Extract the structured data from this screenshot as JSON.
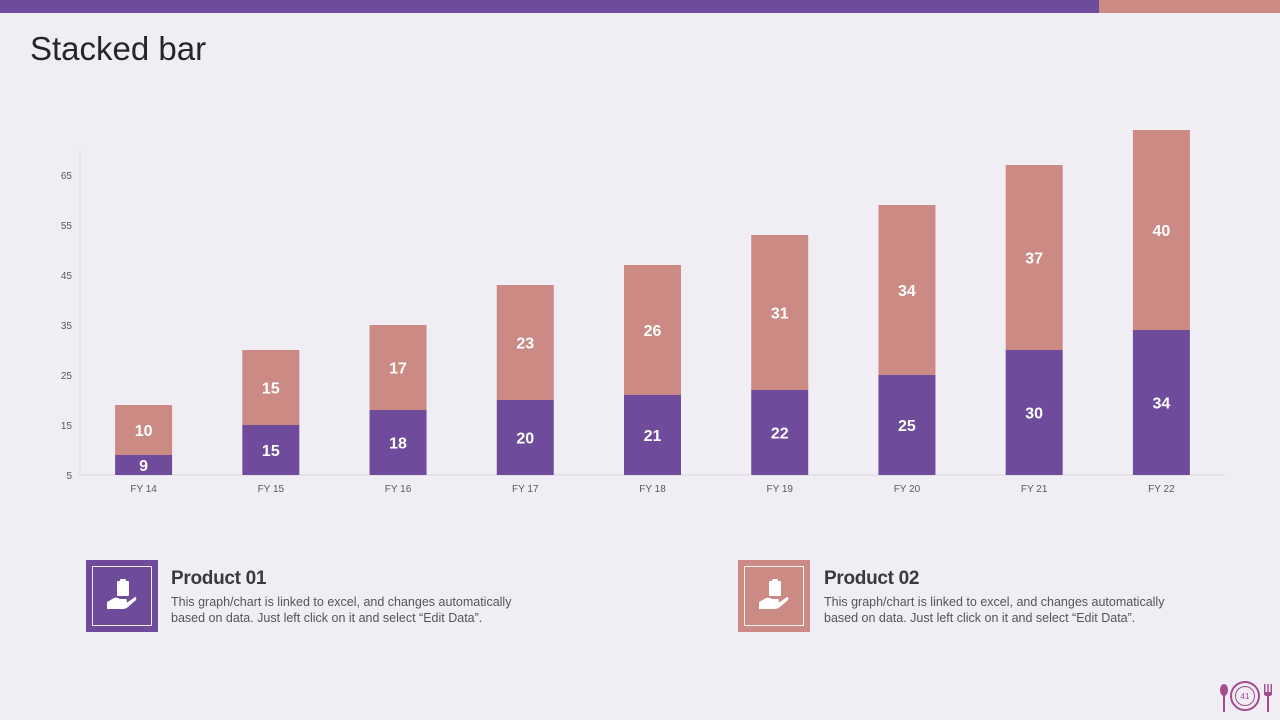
{
  "page": {
    "title": "Stacked bar",
    "page_number": "41"
  },
  "colors": {
    "product01": "#6F4C9B",
    "product02": "#CC8A84",
    "badge": "#A24C8C"
  },
  "legend": [
    {
      "title": "Product 01",
      "text": "This graph/chart is linked to excel, and changes automatically based on data. Just left click on it and select “Edit Data”.",
      "icon": "hand-clipboard-icon"
    },
    {
      "title": "Product 02",
      "text": "This graph/chart is linked to excel, and changes automatically based on data. Just left click on it and select “Edit Data”.",
      "icon": "hand-clipboard-icon"
    }
  ],
  "chart_data": {
    "type": "bar",
    "stacked": true,
    "title": "",
    "xlabel": "",
    "ylabel": "",
    "categories": [
      "FY 14",
      "FY 15",
      "FY 16",
      "FY 17",
      "FY 18",
      "FY 19",
      "FY 20",
      "FY 21",
      "FY 22"
    ],
    "series": [
      {
        "name": "Product 01",
        "values": [
          9,
          15,
          18,
          20,
          21,
          22,
          25,
          30,
          34
        ]
      },
      {
        "name": "Product 02",
        "values": [
          10,
          15,
          17,
          23,
          26,
          31,
          34,
          37,
          40
        ]
      }
    ],
    "ylim": [
      5,
      70
    ],
    "yticks": [
      5,
      15,
      25,
      35,
      45,
      55,
      65
    ],
    "grid": false,
    "data_labels": true
  }
}
